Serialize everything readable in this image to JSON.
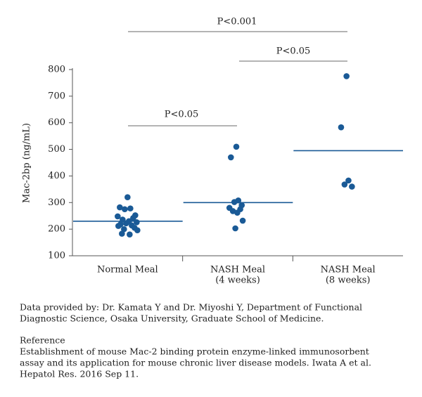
{
  "chart_data": {
    "type": "strip",
    "y_label": "Mac-2bp (ng/mL)",
    "ylim": [
      100,
      800
    ],
    "yticks": [
      100,
      200,
      300,
      400,
      500,
      600,
      700,
      800
    ],
    "color": "#1a5a96",
    "groups": [
      {
        "label": [
          "Normal Meal"
        ],
        "mean": 230,
        "values": [
          320,
          282,
          278,
          275,
          252,
          248,
          242,
          236,
          230,
          226,
          222,
          218,
          214,
          212,
          205,
          200,
          196,
          183,
          180
        ]
      },
      {
        "label": [
          "NASH Meal",
          "(4 weeks)"
        ],
        "mean": 300,
        "values": [
          510,
          470,
          308,
          302,
          290,
          280,
          275,
          268,
          262,
          232,
          203
        ]
      },
      {
        "label": [
          "NASH Meal",
          "(8 weeks)"
        ],
        "mean": 495,
        "values": [
          775,
          583,
          383,
          368,
          360
        ]
      }
    ],
    "annotations": [
      "P<0.05",
      "P<0.05",
      "P<0.001"
    ]
  },
  "notes": [
    [
      "Data provided by: Dr. Kamata Y and Dr. Miyoshi Y, Department of Functional",
      "Diagnostic Science, Osaka University, Graduate School of Medicine."
    ],
    [
      "Reference",
      "Establishment of mouse Mac-2 binding protein enzyme-linked immunosorbent",
      "assay and its application for mouse chronic liver disease models. Iwata A et al.",
      "Hepatol Res. 2016 Sep 11."
    ]
  ]
}
